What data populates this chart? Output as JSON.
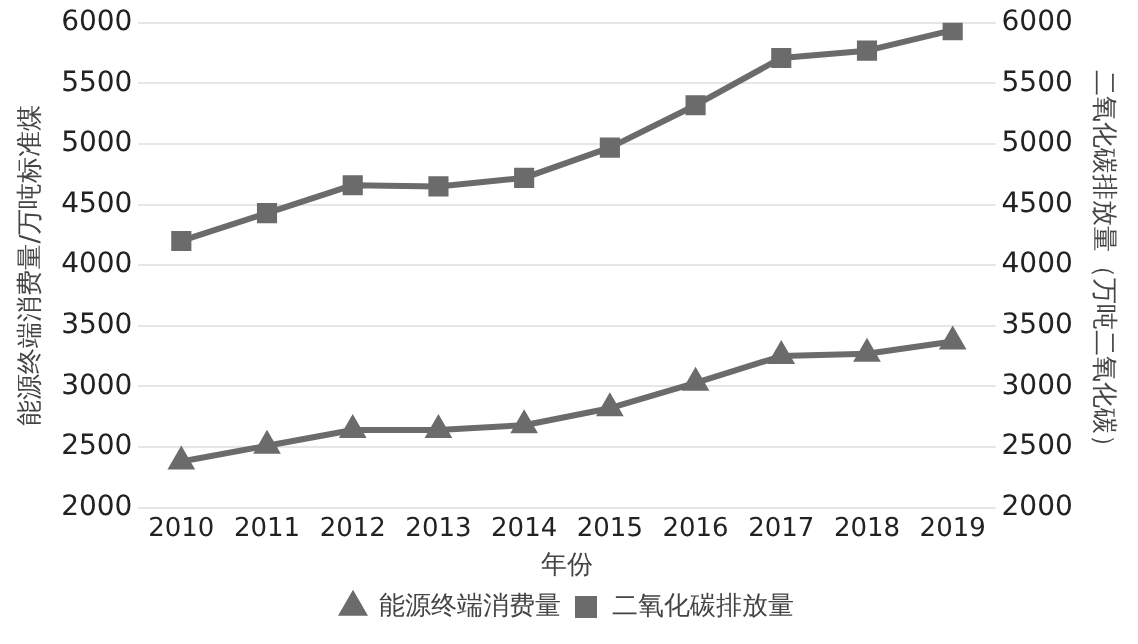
{
  "chart_data": {
    "type": "line",
    "xlabel": "年份",
    "ylabel": "能源终端消费量/万吨标准煤",
    "y2label": "二氧化碳排放量（万吨二氧化碳）",
    "categories": [
      "2010",
      "2011",
      "2012",
      "2013",
      "2014",
      "2015",
      "2016",
      "2017",
      "2018",
      "2019"
    ],
    "series": [
      {
        "name": "能源终端消费量",
        "color": "#6b6b6b",
        "marker": "triangle",
        "values": [
          2380,
          2510,
          2640,
          2640,
          2680,
          2820,
          3030,
          3250,
          3270,
          3370
        ]
      },
      {
        "name": "二氧化碳排放量",
        "color": "#6b6b6b",
        "marker": "square",
        "axis": "y2",
        "values": [
          4200,
          4430,
          4660,
          4650,
          4720,
          4970,
          5320,
          5710,
          5770,
          5940
        ]
      }
    ],
    "ylim": [
      2000,
      6000
    ],
    "yticks": [
      2000,
      2500,
      3000,
      3500,
      4000,
      4500,
      5000,
      5500,
      6000
    ],
    "y2lim": [
      2000,
      6000
    ],
    "y2ticks": [
      2000,
      2500,
      3000,
      3500,
      4000,
      4500,
      5000,
      5500,
      6000
    ],
    "grid": "y",
    "legend": "bottom"
  }
}
